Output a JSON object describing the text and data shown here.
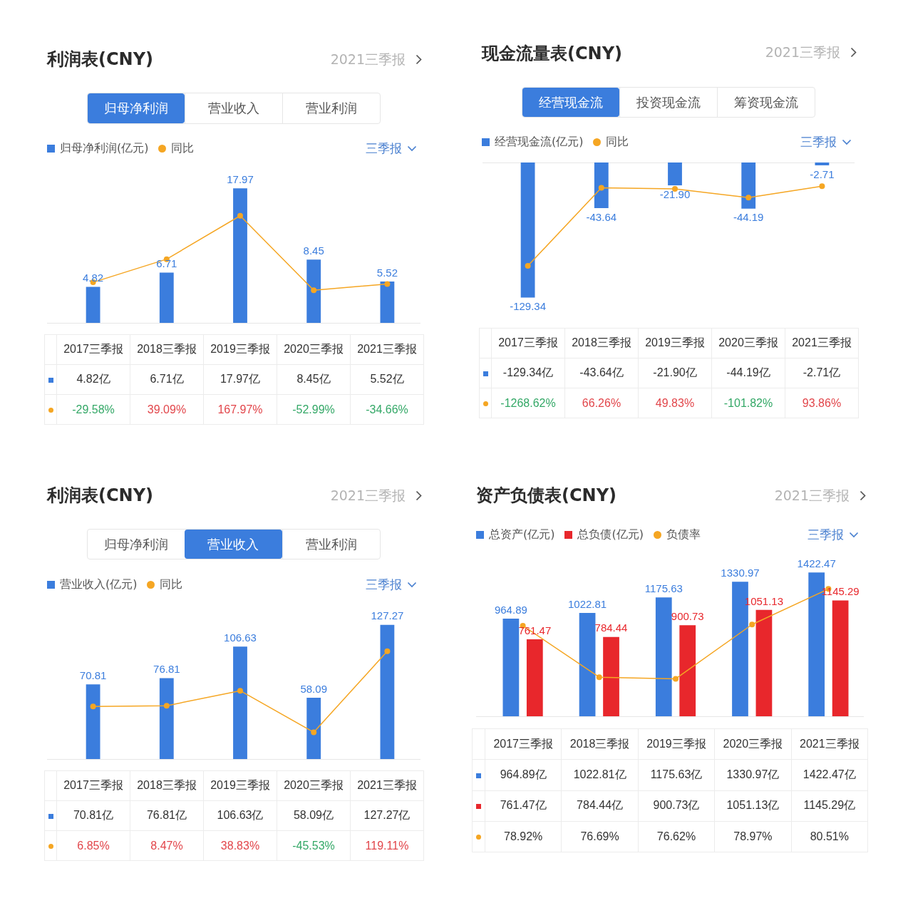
{
  "chart_data": [
    {
      "type": "bar",
      "title": "利润表(CNY)",
      "annotations": [
        "2021三季报",
        "三季报",
        "亿",
        "归母净利润",
        "营业收入",
        "营业利润"
      ],
      "categories": [
        "2017三季报",
        "2018三季报",
        "2019三季报",
        "2020三季报",
        "2021三季报"
      ],
      "series": [
        {
          "name": "归母净利润(亿元)",
          "color": "#3b7ddd",
          "values": [
            4.82,
            6.71,
            17.97,
            8.45,
            5.52
          ],
          "value_labels": [
            "4.82",
            "6.71",
            "17.97",
            "8.45",
            "5.52"
          ]
        },
        {
          "name": "同比",
          "type": "line",
          "axis": "y2",
          "color": "#f5a623",
          "values": [
            -29.58,
            39.09,
            167.97,
            -52.99,
            -34.66
          ],
          "value_labels": [
            "-29.58%",
            "39.09%",
            "167.97%",
            "-52.99%",
            "-34.66%"
          ]
        }
      ],
      "legend": "top left",
      "marker": "circle",
      "tick_labels": "x"
    },
    {
      "type": "bar",
      "title": "现金流量表(CNY)",
      "annotations": [
        "2021三季报",
        "三季报",
        "亿",
        "经营现金流",
        "投资现金流",
        "筹资现金流"
      ],
      "categories": [
        "2017三季报",
        "2018三季报",
        "2019三季报",
        "2020三季报",
        "2021三季报"
      ],
      "series": [
        {
          "name": "经营现金流(亿元)",
          "color": "#3b7ddd",
          "values": [
            -129.34,
            -43.64,
            -21.9,
            -44.19,
            -2.71
          ],
          "value_labels": [
            "-129.34",
            "-43.64",
            "-21.90",
            "-44.19",
            "-2.71"
          ]
        },
        {
          "name": "同比",
          "type": "line",
          "axis": "y2",
          "color": "#f5a623",
          "values": [
            -1268.62,
            66.26,
            49.83,
            -101.82,
            93.86
          ],
          "value_labels": [
            "-1268.62%",
            "66.26%",
            "49.83%",
            "-101.82%",
            "93.86%"
          ]
        }
      ],
      "legend": "top left",
      "marker": "circle",
      "tick_labels": "x"
    },
    {
      "type": "bar",
      "title": "利润表(CNY)",
      "annotations": [
        "2021三季报",
        "三季报",
        "亿",
        "归母净利润",
        "营业收入",
        "营业利润"
      ],
      "categories": [
        "2017三季报",
        "2018三季报",
        "2019三季报",
        "2020三季报",
        "2021三季报"
      ],
      "series": [
        {
          "name": "营业收入(亿元)",
          "color": "#3b7ddd",
          "values": [
            70.81,
            76.81,
            106.63,
            58.09,
            127.27
          ],
          "value_labels": [
            "70.81",
            "76.81",
            "106.63",
            "58.09",
            "127.27"
          ]
        },
        {
          "name": "同比",
          "type": "line",
          "axis": "y2",
          "color": "#f5a623",
          "values": [
            6.85,
            8.47,
            38.83,
            -45.53,
            119.11
          ],
          "value_labels": [
            "6.85%",
            "8.47%",
            "38.83%",
            "-45.53%",
            "119.11%"
          ]
        }
      ],
      "legend": "top left",
      "marker": "circle",
      "tick_labels": "x"
    },
    {
      "type": "bar",
      "title": "资产负债表(CNY)",
      "annotations": [
        "2021三季报",
        "三季报",
        "亿"
      ],
      "categories": [
        "2017三季报",
        "2018三季报",
        "2019三季报",
        "2020三季报",
        "2021三季报"
      ],
      "series": [
        {
          "name": "总资产(亿元)",
          "color": "#3b7ddd",
          "values": [
            964.89,
            1022.81,
            1175.63,
            1330.97,
            1422.47
          ],
          "value_labels": [
            "964.89",
            "1022.81",
            "1175.63",
            "1330.97",
            "1422.47"
          ]
        },
        {
          "name": "总负债(亿元)",
          "color": "#e8272c",
          "values": [
            761.47,
            784.44,
            900.73,
            1051.13,
            1145.29
          ],
          "value_labels": [
            "761.47",
            "784.44",
            "900.73",
            "1051.13",
            "1145.29"
          ]
        },
        {
          "name": "负债率",
          "type": "line",
          "axis": "y2",
          "color": "#f5a623",
          "values": [
            78.92,
            76.69,
            76.62,
            78.97,
            80.51
          ],
          "value_labels": [
            "78.92%",
            "76.69%",
            "76.62%",
            "78.97%",
            "80.51%"
          ]
        }
      ],
      "legend": "top left",
      "marker": "circle",
      "tick_labels": "x"
    }
  ]
}
